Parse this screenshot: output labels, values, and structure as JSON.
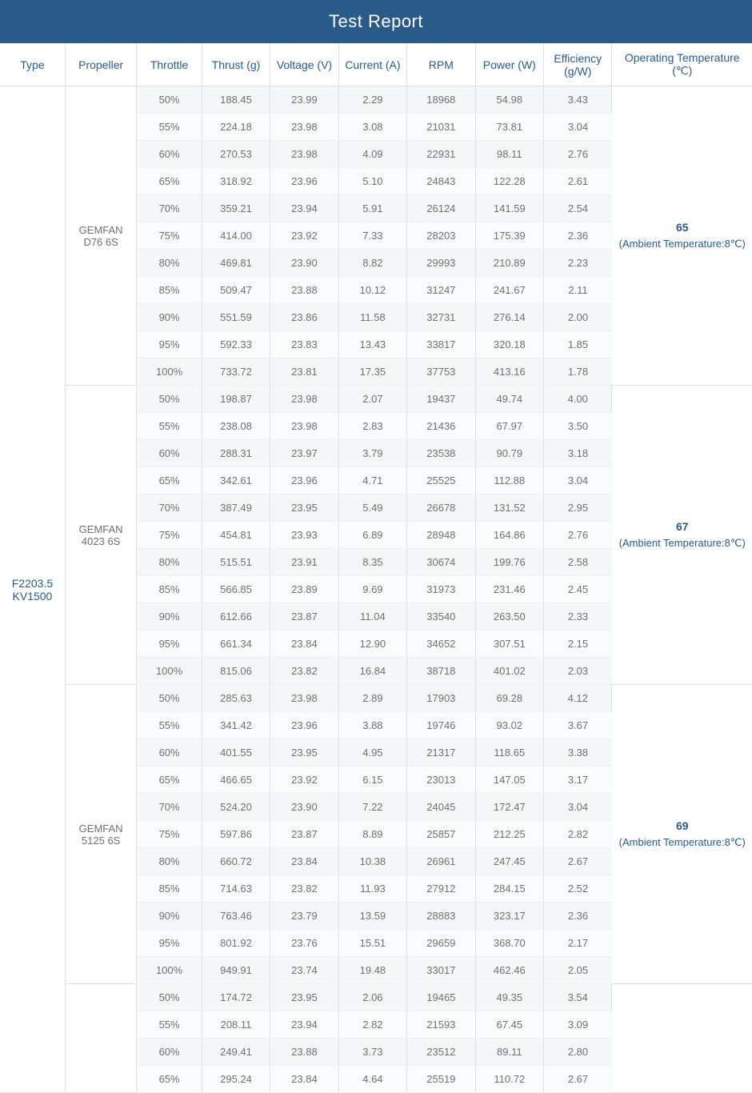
{
  "title": "Test Report",
  "columns": [
    "Type",
    "Propeller",
    "Throttle",
    "Thrust (g)",
    "Voltage (V)",
    "Current (A)",
    "RPM",
    "Power (W)",
    "Efficiency (g/W)",
    "Operating Temperature (℃)"
  ],
  "type_label": "F2203.5 KV1500",
  "ambient_label": "(Ambient Temperature:8℃)",
  "colors": {
    "header_bg": "#2a5a8a",
    "header_fg": "#ffffff",
    "accent": "#2a5a8a",
    "text": "#707070",
    "stripe_even": "#f4f6f8",
    "stripe_odd": "#fafbfc",
    "border": "#e0e0e0"
  },
  "groups": [
    {
      "propeller": "GEMFAN D76  6S",
      "temp": "65",
      "rows": [
        [
          "50%",
          "188.45",
          "23.99",
          "2.29",
          "18968",
          "54.98",
          "3.43"
        ],
        [
          "55%",
          "224.18",
          "23.98",
          "3.08",
          "21031",
          "73.81",
          "3.04"
        ],
        [
          "60%",
          "270.53",
          "23.98",
          "4.09",
          "22931",
          "98.11",
          "2.76"
        ],
        [
          "65%",
          "318.92",
          "23.96",
          "5.10",
          "24843",
          "122.28",
          "2.61"
        ],
        [
          "70%",
          "359.21",
          "23.94",
          "5.91",
          "26124",
          "141.59",
          "2.54"
        ],
        [
          "75%",
          "414.00",
          "23.92",
          "7.33",
          "28203",
          "175.39",
          "2.36"
        ],
        [
          "80%",
          "469.81",
          "23.90",
          "8.82",
          "29993",
          "210.89",
          "2.23"
        ],
        [
          "85%",
          "509.47",
          "23.88",
          "10.12",
          "31247",
          "241.67",
          "2.11"
        ],
        [
          "90%",
          "551.59",
          "23.86",
          "11.58",
          "32731",
          "276.14",
          "2.00"
        ],
        [
          "95%",
          "592.33",
          "23.83",
          "13.43",
          "33817",
          "320.18",
          "1.85"
        ],
        [
          "100%",
          "733.72",
          "23.81",
          "17.35",
          "37753",
          "413.16",
          "1.78"
        ]
      ]
    },
    {
      "propeller": "GEMFAN 4023 6S",
      "temp": "67",
      "rows": [
        [
          "50%",
          "198.87",
          "23.98",
          "2.07",
          "19437",
          "49.74",
          "4.00"
        ],
        [
          "55%",
          "238.08",
          "23.98",
          "2.83",
          "21436",
          "67.97",
          "3.50"
        ],
        [
          "60%",
          "288.31",
          "23.97",
          "3.79",
          "23538",
          "90.79",
          "3.18"
        ],
        [
          "65%",
          "342.61",
          "23.96",
          "4.71",
          "25525",
          "112.88",
          "3.04"
        ],
        [
          "70%",
          "387.49",
          "23.95",
          "5.49",
          "26678",
          "131.52",
          "2.95"
        ],
        [
          "75%",
          "454.81",
          "23.93",
          "6.89",
          "28948",
          "164.86",
          "2.76"
        ],
        [
          "80%",
          "515.51",
          "23.91",
          "8.35",
          "30674",
          "199.76",
          "2.58"
        ],
        [
          "85%",
          "566.85",
          "23.89",
          "9.69",
          "31973",
          "231.46",
          "2.45"
        ],
        [
          "90%",
          "612.66",
          "23.87",
          "11.04",
          "33540",
          "263.50",
          "2.33"
        ],
        [
          "95%",
          "661.34",
          "23.84",
          "12.90",
          "34652",
          "307.51",
          "2.15"
        ],
        [
          "100%",
          "815.06",
          "23.82",
          "16.84",
          "38718",
          "401.02",
          "2.03"
        ]
      ]
    },
    {
      "propeller": "GEMFAN 5125 6S",
      "temp": "69",
      "rows": [
        [
          "50%",
          "285.63",
          "23.98",
          "2.89",
          "17903",
          "69.28",
          "4.12"
        ],
        [
          "55%",
          "341.42",
          "23.96",
          "3.88",
          "19746",
          "93.02",
          "3.67"
        ],
        [
          "60%",
          "401.55",
          "23.95",
          "4.95",
          "21317",
          "118.65",
          "3.38"
        ],
        [
          "65%",
          "466.65",
          "23.92",
          "6.15",
          "23013",
          "147.05",
          "3.17"
        ],
        [
          "70%",
          "524.20",
          "23.90",
          "7.22",
          "24045",
          "172.47",
          "3.04"
        ],
        [
          "75%",
          "597.86",
          "23.87",
          "8.89",
          "25857",
          "212.25",
          "2.82"
        ],
        [
          "80%",
          "660.72",
          "23.84",
          "10.38",
          "26961",
          "247.45",
          "2.67"
        ],
        [
          "85%",
          "714.63",
          "23.82",
          "11.93",
          "27912",
          "284.15",
          "2.52"
        ],
        [
          "90%",
          "763.46",
          "23.79",
          "13.59",
          "28883",
          "323.17",
          "2.36"
        ],
        [
          "95%",
          "801.92",
          "23.76",
          "15.51",
          "29659",
          "368.70",
          "2.17"
        ],
        [
          "100%",
          "949.91",
          "23.74",
          "19.48",
          "33017",
          "462.46",
          "2.05"
        ]
      ]
    },
    {
      "propeller": "",
      "temp": "",
      "partial": true,
      "rows": [
        [
          "50%",
          "174.72",
          "23.95",
          "2.06",
          "19465",
          "49.35",
          "3.54"
        ],
        [
          "55%",
          "208.11",
          "23.94",
          "2.82",
          "21593",
          "67.45",
          "3.09"
        ],
        [
          "60%",
          "249.41",
          "23.88",
          "3.73",
          "23512",
          "89.11",
          "2.80"
        ],
        [
          "65%",
          "295.24",
          "23.84",
          "4.64",
          "25519",
          "110.72",
          "2.67"
        ]
      ]
    }
  ]
}
